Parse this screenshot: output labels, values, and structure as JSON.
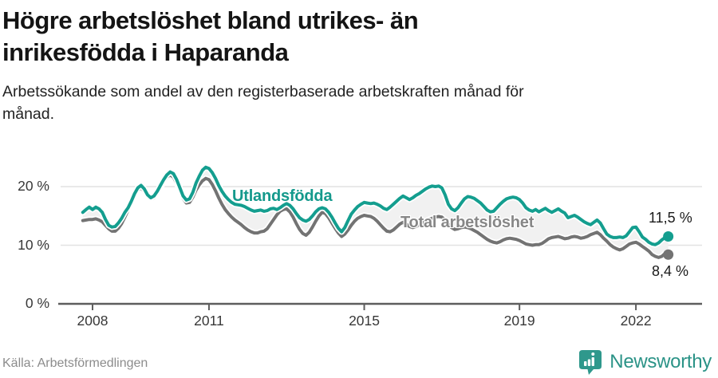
{
  "header": {
    "title_lines": [
      "Högre arbetslöshet bland utrikes- än",
      "inrikesfödda i Haparanda"
    ],
    "subtitle_lines": [
      "Arbetssökande som andel av den registerbaserade arbetskraften månad för",
      "månad."
    ]
  },
  "branding": {
    "name": "Newsworthy",
    "icon": "newsworthy-speech-bubble-bars-icon",
    "color": "#2b9387"
  },
  "chart_data": {
    "type": "line",
    "title": "Högre arbetslöshet bland utrikes- än inrikesfödda i Haparanda",
    "subtitle": "Arbetssökande som andel av den registerbaserade arbetskraften månad för månad.",
    "source": "Källa: Arbetsförmedlingen",
    "grid": "horizontal",
    "legend": "inline-labels",
    "ylim": [
      0,
      27
    ],
    "x_start_year": 2007.75,
    "x_step_years": 0.0833333,
    "x_interval": "monthly",
    "band_fill": "#f1f1f1",
    "gridline_color": "#e2e2e2",
    "axis_color": "#5e5e5e",
    "y_ticks": [
      {
        "value": 0,
        "label": "0 %"
      },
      {
        "value": 10,
        "label": "10 %"
      },
      {
        "value": 20,
        "label": "20 %"
      }
    ],
    "x_ticks": [
      {
        "value": 2008,
        "label": "2008"
      },
      {
        "value": 2011,
        "label": "2011"
      },
      {
        "value": 2015,
        "label": "2015"
      },
      {
        "value": 2019,
        "label": "2019"
      },
      {
        "value": 2022,
        "label": "2022"
      }
    ],
    "series": [
      {
        "name": "Utlandsfödda",
        "color": "#149e8f",
        "end_label": "11,5 %",
        "end_value": 11.5,
        "values": [
          15.6,
          16.1,
          16.5,
          16.1,
          16.5,
          16.2,
          15.6,
          14.4,
          13.4,
          13.1,
          13.2,
          13.8,
          14.6,
          15.6,
          16.4,
          17.5,
          18.8,
          19.8,
          20.2,
          19.6,
          18.6,
          18.1,
          18.4,
          19.2,
          20.2,
          21.2,
          22.0,
          22.5,
          22.2,
          21.2,
          19.8,
          18.4,
          17.7,
          17.9,
          19.0,
          20.6,
          21.8,
          22.8,
          23.3,
          23.1,
          22.4,
          21.4,
          20.2,
          19.2,
          18.4,
          17.8,
          17.3,
          17.0,
          16.9,
          16.8,
          16.6,
          16.3,
          16.0,
          15.8,
          15.9,
          16.0,
          15.8,
          15.9,
          16.2,
          16.3,
          16.1,
          16.4,
          16.8,
          17.1,
          16.8,
          16.2,
          15.4,
          14.7,
          14.3,
          14.1,
          14.4,
          15.0,
          15.7,
          16.2,
          16.4,
          16.2,
          15.6,
          14.8,
          13.8,
          12.9,
          12.3,
          13.0,
          14.2,
          15.3,
          16.0,
          16.6,
          17.0,
          17.3,
          17.2,
          17.1,
          17.2,
          17.0,
          16.7,
          16.3,
          16.1,
          16.5,
          17.0,
          17.5,
          18.0,
          18.4,
          18.1,
          17.8,
          18.1,
          18.5,
          18.8,
          19.2,
          19.6,
          19.9,
          20.1,
          20.0,
          20.1,
          19.8,
          18.6,
          17.0,
          16.2,
          15.9,
          16.4,
          17.2,
          17.9,
          18.3,
          18.2,
          18.0,
          17.6,
          17.2,
          16.6,
          16.0,
          15.7,
          15.8,
          16.4,
          17.0,
          17.5,
          17.9,
          18.1,
          18.2,
          18.1,
          17.8,
          17.2,
          16.4,
          16.0,
          15.8,
          16.1,
          15.7,
          16.0,
          16.3,
          15.9,
          15.6,
          15.9,
          16.2,
          15.8,
          15.5,
          14.7,
          14.9,
          15.1,
          14.8,
          14.4,
          14.0,
          13.7,
          13.5,
          13.9,
          14.3,
          13.8,
          12.8,
          11.9,
          11.5,
          11.3,
          11.3,
          11.4,
          11.3,
          11.6,
          12.3,
          13.0,
          13.1,
          12.3,
          11.4,
          11.0,
          10.5,
          10.2,
          10.1,
          10.4,
          10.9,
          11.3,
          11.5
        ]
      },
      {
        "name": "Total arbetslöshet",
        "color": "#737373",
        "end_label": "8,4 %",
        "end_value": 8.4,
        "values": [
          14.2,
          14.3,
          14.4,
          14.4,
          14.5,
          14.3,
          14.0,
          13.4,
          12.8,
          12.4,
          12.4,
          12.9,
          13.7,
          14.8,
          16.0,
          17.2,
          18.4,
          19.4,
          19.8,
          19.2,
          18.4,
          17.9,
          18.1,
          18.9,
          19.8,
          20.8,
          21.6,
          22.0,
          21.6,
          20.6,
          19.3,
          18.0,
          17.2,
          17.3,
          18.2,
          19.4,
          20.3,
          21.0,
          21.4,
          21.2,
          20.4,
          19.3,
          18.1,
          17.0,
          16.1,
          15.4,
          14.8,
          14.3,
          13.9,
          13.5,
          13.0,
          12.6,
          12.3,
          12.1,
          12.1,
          12.3,
          12.4,
          12.8,
          13.6,
          14.4,
          15.2,
          15.8,
          16.1,
          16.2,
          15.7,
          14.8,
          13.7,
          12.7,
          12.0,
          11.7,
          12.2,
          13.1,
          14.1,
          15.0,
          15.6,
          15.4,
          14.7,
          13.8,
          12.9,
          12.1,
          11.5,
          11.9,
          12.6,
          13.4,
          14.1,
          14.6,
          14.9,
          15.1,
          15.0,
          14.9,
          14.6,
          14.1,
          13.5,
          12.9,
          12.4,
          12.3,
          12.6,
          13.1,
          13.6,
          13.9,
          13.6,
          13.2,
          13.0,
          13.2,
          13.5,
          13.8,
          14.1,
          14.4,
          14.6,
          14.8,
          14.9,
          14.8,
          14.3,
          13.6,
          13.0,
          12.7,
          12.8,
          13.0,
          13.1,
          13.0,
          12.8,
          12.5,
          12.2,
          11.8,
          11.4,
          11.0,
          10.7,
          10.5,
          10.4,
          10.6,
          10.9,
          11.1,
          11.2,
          11.1,
          11.0,
          10.8,
          10.5,
          10.2,
          10.1,
          10.0,
          10.1,
          10.1,
          10.3,
          10.7,
          11.1,
          11.3,
          11.4,
          11.5,
          11.3,
          11.1,
          11.2,
          11.4,
          11.5,
          11.4,
          11.2,
          11.3,
          11.5,
          11.8,
          12.0,
          12.2,
          11.8,
          11.2,
          10.7,
          10.1,
          9.7,
          9.4,
          9.2,
          9.4,
          9.8,
          10.2,
          10.4,
          10.5,
          10.2,
          9.8,
          9.4,
          9.0,
          8.4,
          8.1,
          7.9,
          8.1,
          8.6,
          8.4
        ]
      }
    ]
  }
}
